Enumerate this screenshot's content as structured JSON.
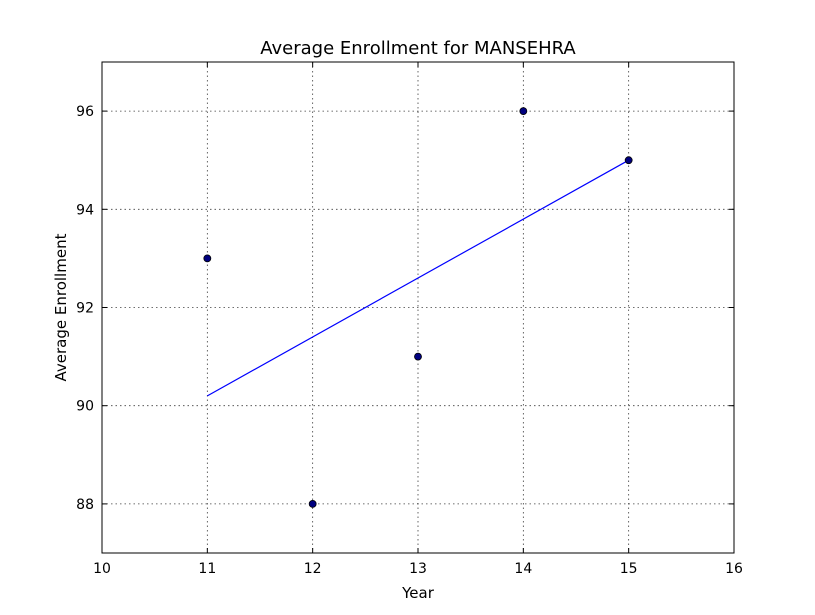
{
  "chart_data": {
    "type": "scatter",
    "title": "Average Enrollment for MANSEHRA",
    "xlabel": "Year",
    "ylabel": "Average Enrollment",
    "xlim": [
      10,
      16
    ],
    "ylim": [
      87,
      97
    ],
    "x_ticks": [
      10,
      11,
      12,
      13,
      14,
      15,
      16
    ],
    "y_ticks": [
      88,
      90,
      92,
      94,
      96
    ],
    "grid": true,
    "series": [
      {
        "kind": "scatter",
        "x": [
          11,
          12,
          13,
          14,
          15
        ],
        "y": [
          93,
          88,
          91,
          96,
          95
        ],
        "color": "#00007f",
        "edge_color": "#000000"
      },
      {
        "kind": "line",
        "x": [
          11,
          15
        ],
        "y": [
          90.2,
          95.0
        ],
        "color": "#0000ff"
      }
    ]
  }
}
